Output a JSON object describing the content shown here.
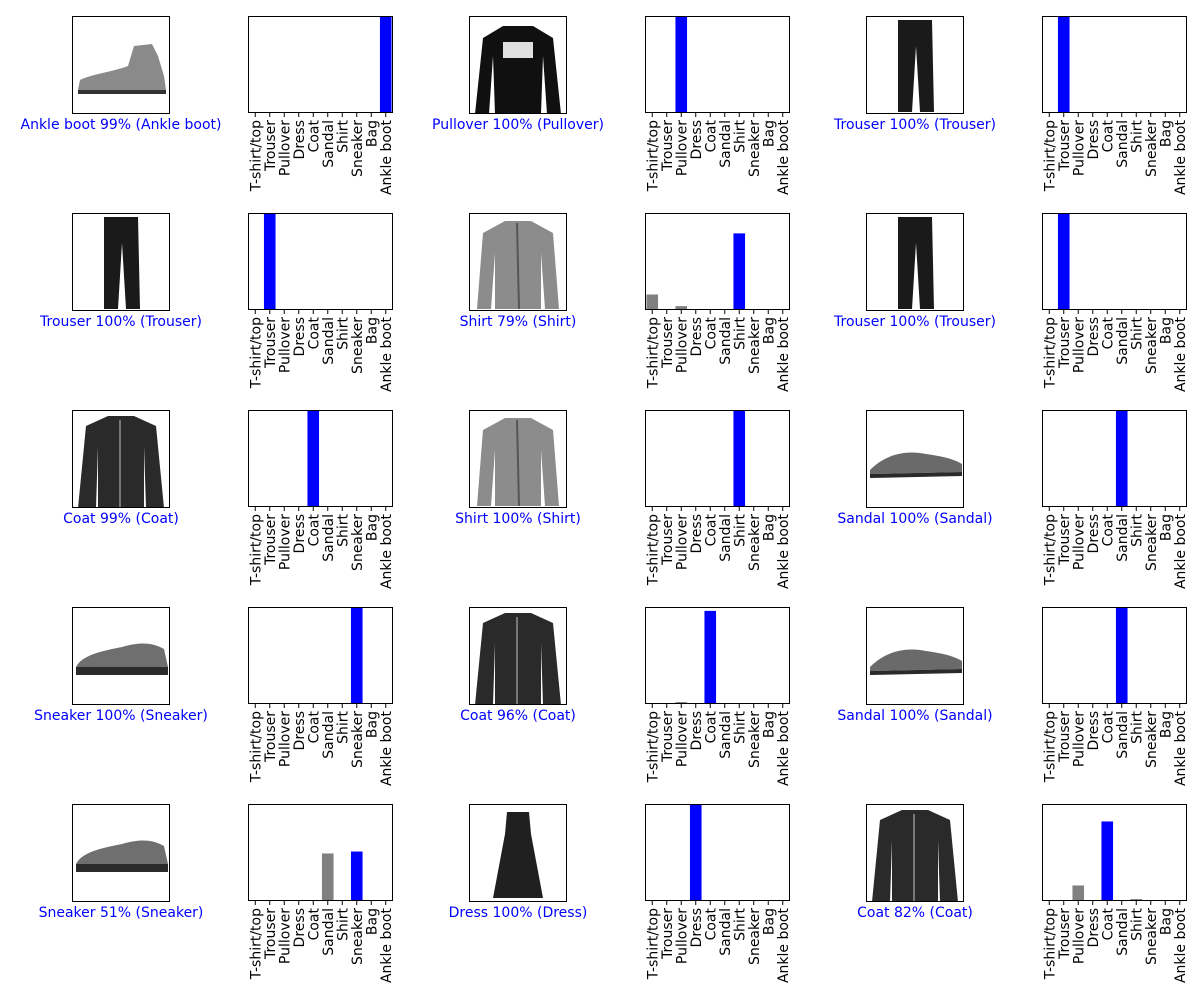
{
  "colors": {
    "correct": "#0000ff",
    "wrong": "#ff0000",
    "bar_default": "#808080",
    "axes_frame": "#000000",
    "background": "#ffffff"
  },
  "chart_data": [
    {
      "type": "bar",
      "thumbnail": "ankle-boot-icon",
      "caption": "Ankle boot 99% (Ankle boot)",
      "caption_color": "#0000ff",
      "predicted": "Ankle boot",
      "true_label": "Ankle boot",
      "categories": [
        "T-shirt/top",
        "Trouser",
        "Pullover",
        "Dress",
        "Coat",
        "Sandal",
        "Shirt",
        "Sneaker",
        "Bag",
        "Ankle boot"
      ],
      "values": [
        0,
        0,
        0,
        0,
        0,
        0.005,
        0,
        0.003,
        0,
        0.99
      ],
      "ylim": [
        0,
        1
      ],
      "highlight": {
        "Ankle boot": "#0000ff"
      }
    },
    {
      "type": "bar",
      "thumbnail": "pullover-icon",
      "caption": "Pullover 100% (Pullover)",
      "caption_color": "#0000ff",
      "predicted": "Pullover",
      "true_label": "Pullover",
      "categories": [
        "T-shirt/top",
        "Trouser",
        "Pullover",
        "Dress",
        "Coat",
        "Sandal",
        "Shirt",
        "Sneaker",
        "Bag",
        "Ankle boot"
      ],
      "values": [
        0,
        0,
        1.0,
        0,
        0.004,
        0,
        0.002,
        0,
        0,
        0
      ],
      "ylim": [
        0,
        1
      ],
      "highlight": {
        "Pullover": "#0000ff"
      }
    },
    {
      "type": "bar",
      "thumbnail": "trouser-icon",
      "caption": "Trouser 100% (Trouser)",
      "caption_color": "#0000ff",
      "predicted": "Trouser",
      "true_label": "Trouser",
      "categories": [
        "T-shirt/top",
        "Trouser",
        "Pullover",
        "Dress",
        "Coat",
        "Sandal",
        "Shirt",
        "Sneaker",
        "Bag",
        "Ankle boot"
      ],
      "values": [
        0,
        1.0,
        0,
        0,
        0,
        0,
        0,
        0,
        0,
        0
      ],
      "ylim": [
        0,
        1
      ],
      "highlight": {
        "Trouser": "#0000ff"
      }
    },
    {
      "type": "bar",
      "thumbnail": "trouser-icon",
      "caption": "Trouser 100% (Trouser)",
      "caption_color": "#0000ff",
      "predicted": "Trouser",
      "true_label": "Trouser",
      "categories": [
        "T-shirt/top",
        "Trouser",
        "Pullover",
        "Dress",
        "Coat",
        "Sandal",
        "Shirt",
        "Sneaker",
        "Bag",
        "Ankle boot"
      ],
      "values": [
        0,
        1.0,
        0,
        0,
        0,
        0,
        0,
        0,
        0,
        0
      ],
      "ylim": [
        0,
        1
      ],
      "highlight": {
        "Trouser": "#0000ff"
      }
    },
    {
      "type": "bar",
      "thumbnail": "shirt-icon",
      "caption": "Shirt 79% (Shirt)",
      "caption_color": "#0000ff",
      "predicted": "Shirt",
      "true_label": "Shirt",
      "categories": [
        "T-shirt/top",
        "Trouser",
        "Pullover",
        "Dress",
        "Coat",
        "Sandal",
        "Shirt",
        "Sneaker",
        "Bag",
        "Ankle boot"
      ],
      "values": [
        0.16,
        0,
        0.04,
        0,
        0.01,
        0,
        0.79,
        0,
        0,
        0
      ],
      "ylim": [
        0,
        1
      ],
      "highlight": {
        "Shirt": "#0000ff"
      }
    },
    {
      "type": "bar",
      "thumbnail": "trouser-icon",
      "caption": "Trouser 100% (Trouser)",
      "caption_color": "#0000ff",
      "predicted": "Trouser",
      "true_label": "Trouser",
      "categories": [
        "T-shirt/top",
        "Trouser",
        "Pullover",
        "Dress",
        "Coat",
        "Sandal",
        "Shirt",
        "Sneaker",
        "Bag",
        "Ankle boot"
      ],
      "values": [
        0,
        1.0,
        0,
        0,
        0,
        0,
        0,
        0,
        0,
        0
      ],
      "ylim": [
        0,
        1
      ],
      "highlight": {
        "Trouser": "#0000ff"
      }
    },
    {
      "type": "bar",
      "thumbnail": "coat-icon",
      "caption": "Coat 99% (Coat)",
      "caption_color": "#0000ff",
      "predicted": "Coat",
      "true_label": "Coat",
      "categories": [
        "T-shirt/top",
        "Trouser",
        "Pullover",
        "Dress",
        "Coat",
        "Sandal",
        "Shirt",
        "Sneaker",
        "Bag",
        "Ankle boot"
      ],
      "values": [
        0,
        0,
        0,
        0,
        0.99,
        0,
        0.008,
        0,
        0,
        0
      ],
      "ylim": [
        0,
        1
      ],
      "highlight": {
        "Coat": "#0000ff"
      }
    },
    {
      "type": "bar",
      "thumbnail": "shirt-icon",
      "caption": "Shirt 100% (Shirt)",
      "caption_color": "#0000ff",
      "predicted": "Shirt",
      "true_label": "Shirt",
      "categories": [
        "T-shirt/top",
        "Trouser",
        "Pullover",
        "Dress",
        "Coat",
        "Sandal",
        "Shirt",
        "Sneaker",
        "Bag",
        "Ankle boot"
      ],
      "values": [
        0,
        0,
        0,
        0,
        0,
        0,
        1.0,
        0,
        0,
        0
      ],
      "ylim": [
        0,
        1
      ],
      "highlight": {
        "Shirt": "#0000ff"
      }
    },
    {
      "type": "bar",
      "thumbnail": "sandal-icon",
      "caption": "Sandal 100% (Sandal)",
      "caption_color": "#0000ff",
      "predicted": "Sandal",
      "true_label": "Sandal",
      "categories": [
        "T-shirt/top",
        "Trouser",
        "Pullover",
        "Dress",
        "Coat",
        "Sandal",
        "Shirt",
        "Sneaker",
        "Bag",
        "Ankle boot"
      ],
      "values": [
        0,
        0,
        0,
        0,
        0,
        1.0,
        0,
        0,
        0,
        0
      ],
      "ylim": [
        0,
        1
      ],
      "highlight": {
        "Sandal": "#0000ff"
      }
    },
    {
      "type": "bar",
      "thumbnail": "sneaker-icon",
      "caption": "Sneaker 100% (Sneaker)",
      "caption_color": "#0000ff",
      "predicted": "Sneaker",
      "true_label": "Sneaker",
      "categories": [
        "T-shirt/top",
        "Trouser",
        "Pullover",
        "Dress",
        "Coat",
        "Sandal",
        "Shirt",
        "Sneaker",
        "Bag",
        "Ankle boot"
      ],
      "values": [
        0,
        0,
        0,
        0,
        0,
        0,
        0,
        1.0,
        0,
        0
      ],
      "ylim": [
        0,
        1
      ],
      "highlight": {
        "Sneaker": "#0000ff"
      }
    },
    {
      "type": "bar",
      "thumbnail": "coat-icon",
      "caption": "Coat 96% (Coat)",
      "caption_color": "#0000ff",
      "predicted": "Coat",
      "true_label": "Coat",
      "categories": [
        "T-shirt/top",
        "Trouser",
        "Pullover",
        "Dress",
        "Coat",
        "Sandal",
        "Shirt",
        "Sneaker",
        "Bag",
        "Ankle boot"
      ],
      "values": [
        0,
        0,
        0.02,
        0,
        0.96,
        0,
        0.01,
        0,
        0,
        0
      ],
      "ylim": [
        0,
        1
      ],
      "highlight": {
        "Coat": "#0000ff"
      }
    },
    {
      "type": "bar",
      "thumbnail": "sandal-icon",
      "caption": "Sandal 100% (Sandal)",
      "caption_color": "#0000ff",
      "predicted": "Sandal",
      "true_label": "Sandal",
      "categories": [
        "T-shirt/top",
        "Trouser",
        "Pullover",
        "Dress",
        "Coat",
        "Sandal",
        "Shirt",
        "Sneaker",
        "Bag",
        "Ankle boot"
      ],
      "values": [
        0,
        0,
        0,
        0,
        0,
        1.0,
        0,
        0,
        0,
        0
      ],
      "ylim": [
        0,
        1
      ],
      "highlight": {
        "Sandal": "#0000ff"
      }
    },
    {
      "type": "bar",
      "thumbnail": "sneaker-icon",
      "caption": "Sneaker 51% (Sneaker)",
      "caption_color": "#0000ff",
      "predicted": "Sneaker",
      "true_label": "Sneaker",
      "categories": [
        "T-shirt/top",
        "Trouser",
        "Pullover",
        "Dress",
        "Coat",
        "Sandal",
        "Shirt",
        "Sneaker",
        "Bag",
        "Ankle boot"
      ],
      "values": [
        0,
        0,
        0,
        0,
        0,
        0.49,
        0,
        0.51,
        0,
        0
      ],
      "ylim": [
        0,
        1
      ],
      "highlight": {
        "Sneaker": "#0000ff"
      }
    },
    {
      "type": "bar",
      "thumbnail": "dress-icon",
      "caption": "Dress 100% (Dress)",
      "caption_color": "#0000ff",
      "predicted": "Dress",
      "true_label": "Dress",
      "categories": [
        "T-shirt/top",
        "Trouser",
        "Pullover",
        "Dress",
        "Coat",
        "Sandal",
        "Shirt",
        "Sneaker",
        "Bag",
        "Ankle boot"
      ],
      "values": [
        0,
        0,
        0,
        1.0,
        0,
        0,
        0,
        0,
        0,
        0
      ],
      "ylim": [
        0,
        1
      ],
      "highlight": {
        "Dress": "#0000ff"
      }
    },
    {
      "type": "bar",
      "thumbnail": "coat-icon",
      "caption": "Coat 82% (Coat)",
      "caption_color": "#0000ff",
      "predicted": "Coat",
      "true_label": "Coat",
      "categories": [
        "T-shirt/top",
        "Trouser",
        "Pullover",
        "Dress",
        "Coat",
        "Sandal",
        "Shirt",
        "Sneaker",
        "Bag",
        "Ankle boot"
      ],
      "values": [
        0,
        0,
        0.16,
        0,
        0.82,
        0,
        0.02,
        0,
        0,
        0
      ],
      "ylim": [
        0,
        1
      ],
      "highlight": {
        "Coat": "#0000ff"
      }
    }
  ]
}
